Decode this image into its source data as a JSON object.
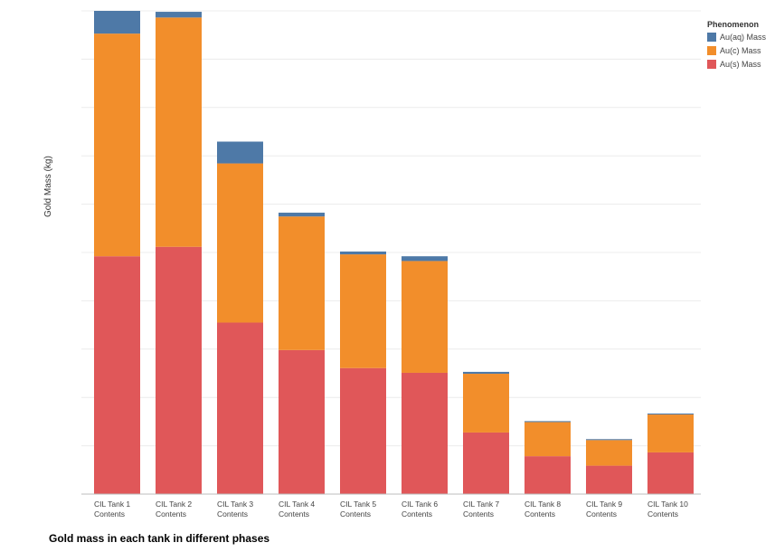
{
  "chart_data": {
    "type": "bar",
    "stacked": true,
    "title": "Gold mass in each tank in different phases",
    "xlabel": "",
    "ylabel": "Gold Mass (kg)",
    "y_tick_labels": false,
    "grid": true,
    "legend_position": "top-right",
    "legend_title": "Phenomenon",
    "categories": [
      [
        "CIL Tank 1",
        "Contents"
      ],
      [
        "CIL Tank 2",
        "Contents"
      ],
      [
        "CIL Tank 3",
        "Contents"
      ],
      [
        "CIL Tank 4",
        "Contents"
      ],
      [
        "CIL Tank 5",
        "Contents"
      ],
      [
        "CIL Tank 6",
        "Contents"
      ],
      [
        "CIL Tank 7",
        "Contents"
      ],
      [
        "CIL Tank 8",
        "Contents"
      ],
      [
        "CIL Tank 9",
        "Contents"
      ],
      [
        "CIL Tank 10",
        "Contents"
      ]
    ],
    "series": [
      {
        "name": "Au(s) Mass",
        "color": "#e05759",
        "values": [
          251,
          261,
          181,
          152,
          133,
          128,
          65,
          40,
          30,
          44
        ]
      },
      {
        "name": "Au(c) Mass",
        "color": "#f28e2b",
        "values": [
          235,
          242,
          168,
          141,
          120,
          118,
          62,
          36,
          27,
          40
        ]
      },
      {
        "name": "Au(aq) Mass",
        "color": "#4e79a7",
        "values": [
          24,
          6,
          23,
          4,
          3,
          5,
          2,
          1,
          1,
          1
        ]
      }
    ],
    "legend_order": [
      "Au(aq) Mass",
      "Au(c) Mass",
      "Au(s) Mass"
    ],
    "ylim": [
      0,
      510
    ]
  }
}
